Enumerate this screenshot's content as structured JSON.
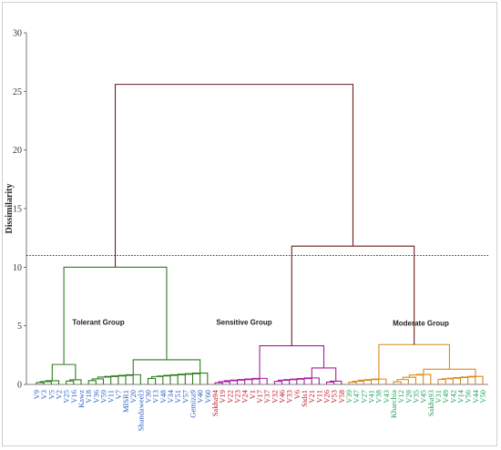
{
  "chart_data": {
    "type": "dendrogram",
    "title": "",
    "ylabel": "Dissimilarity",
    "ylim": [
      0,
      30
    ],
    "yticks": [
      0,
      5,
      10,
      15,
      20,
      25,
      30
    ],
    "grid": false,
    "cutoff": 11,
    "colors": {
      "tolerant": "#2e7d1f",
      "sensitive": "#a61e9e",
      "moderate": "#d9891a",
      "root": "#6b1f1f",
      "leaf_blue": "#2b5fc7",
      "leaf_red": "#c0182a",
      "leaf_green": "#1fa35a",
      "cutoff_line": "#222222"
    },
    "groups": [
      {
        "id": "tolerant",
        "label": "Tolerant Group"
      },
      {
        "id": "sensitive",
        "label": "Sensitive Group"
      },
      {
        "id": "moderate",
        "label": "Moderate Group"
      }
    ],
    "leaves": [
      {
        "label": "V9",
        "tone": "blue"
      },
      {
        "label": "V3",
        "tone": "blue"
      },
      {
        "label": "V5",
        "tone": "blue"
      },
      {
        "label": "V2",
        "tone": "blue"
      },
      {
        "label": "V25",
        "tone": "blue"
      },
      {
        "label": "V16",
        "tone": "blue"
      },
      {
        "label": "Kawz",
        "tone": "blue"
      },
      {
        "label": "V18",
        "tone": "blue"
      },
      {
        "label": "V36",
        "tone": "blue"
      },
      {
        "label": "V59",
        "tone": "blue"
      },
      {
        "label": "V11",
        "tone": "blue"
      },
      {
        "label": "V7",
        "tone": "blue"
      },
      {
        "label": "MISR1",
        "tone": "blue"
      },
      {
        "label": "V20",
        "tone": "blue"
      },
      {
        "label": "Shandaweel3",
        "tone": "blue"
      },
      {
        "label": "V30",
        "tone": "blue"
      },
      {
        "label": "V13",
        "tone": "blue"
      },
      {
        "label": "V48",
        "tone": "blue"
      },
      {
        "label": "V34",
        "tone": "blue"
      },
      {
        "label": "V51",
        "tone": "blue"
      },
      {
        "label": "V57",
        "tone": "blue"
      },
      {
        "label": "Gemiza9",
        "tone": "blue"
      },
      {
        "label": "V40",
        "tone": "blue"
      },
      {
        "label": "V60",
        "tone": "blue"
      },
      {
        "label": "Sakha94",
        "tone": "red"
      },
      {
        "label": "V19",
        "tone": "red"
      },
      {
        "label": "V22",
        "tone": "red"
      },
      {
        "label": "V23",
        "tone": "red"
      },
      {
        "label": "V24",
        "tone": "red"
      },
      {
        "label": "V1",
        "tone": "red"
      },
      {
        "label": "V17",
        "tone": "red"
      },
      {
        "label": "V37",
        "tone": "red"
      },
      {
        "label": "V32",
        "tone": "red"
      },
      {
        "label": "V46",
        "tone": "red"
      },
      {
        "label": "V33",
        "tone": "red"
      },
      {
        "label": "V6",
        "tone": "red"
      },
      {
        "label": "Sids1",
        "tone": "red"
      },
      {
        "label": "V21",
        "tone": "red"
      },
      {
        "label": "V11",
        "tone": "red"
      },
      {
        "label": "V26",
        "tone": "red"
      },
      {
        "label": "V53",
        "tone": "red"
      },
      {
        "label": "V58",
        "tone": "red"
      },
      {
        "label": "V39",
        "tone": "green"
      },
      {
        "label": "V47",
        "tone": "green"
      },
      {
        "label": "V27",
        "tone": "green"
      },
      {
        "label": "V41",
        "tone": "green"
      },
      {
        "label": "V38",
        "tone": "green"
      },
      {
        "label": "V43",
        "tone": "green"
      },
      {
        "label": "Kharchia",
        "tone": "green"
      },
      {
        "label": "V12",
        "tone": "green"
      },
      {
        "label": "V28",
        "tone": "green"
      },
      {
        "label": "V35",
        "tone": "green"
      },
      {
        "label": "V45",
        "tone": "green"
      },
      {
        "label": "Sakha93",
        "tone": "green"
      },
      {
        "label": "V31",
        "tone": "green"
      },
      {
        "label": "V49",
        "tone": "green"
      },
      {
        "label": "V42",
        "tone": "green"
      },
      {
        "label": "V14",
        "tone": "green"
      },
      {
        "label": "V56",
        "tone": "green"
      },
      {
        "label": "V44",
        "tone": "green"
      },
      {
        "label": "V50",
        "tone": "green"
      }
    ],
    "merges": [
      {
        "children": [
          "tolerant",
          "sensitive_moderate"
        ],
        "height": 25.6,
        "group": "root"
      },
      {
        "children": [
          "sensitive",
          "moderate"
        ],
        "height": 11.8,
        "group": "root"
      },
      {
        "children": [
          "tolerant_a",
          "tolerant_b"
        ],
        "height": 10.0,
        "group": "tolerant"
      },
      {
        "children": [
          "sensitive_a",
          "sensitive_b"
        ],
        "height": 3.3,
        "group": "sensitive"
      },
      {
        "children": [
          "moderate_a",
          "moderate_b"
        ],
        "height": 3.4,
        "group": "moderate"
      },
      {
        "children": [
          "tolerant_a1",
          "tolerant_a2"
        ],
        "height": 1.7,
        "group": "tolerant"
      },
      {
        "children": [
          "tolerant_b1",
          "tolerant_b2"
        ],
        "height": 2.1,
        "group": "tolerant"
      },
      {
        "children": [
          "sensitive_b1",
          "sensitive_b2"
        ],
        "height": 1.4,
        "group": "sensitive"
      },
      {
        "children": [
          "moderate_b1",
          "moderate_b2"
        ],
        "height": 1.3,
        "group": "moderate"
      }
    ]
  }
}
